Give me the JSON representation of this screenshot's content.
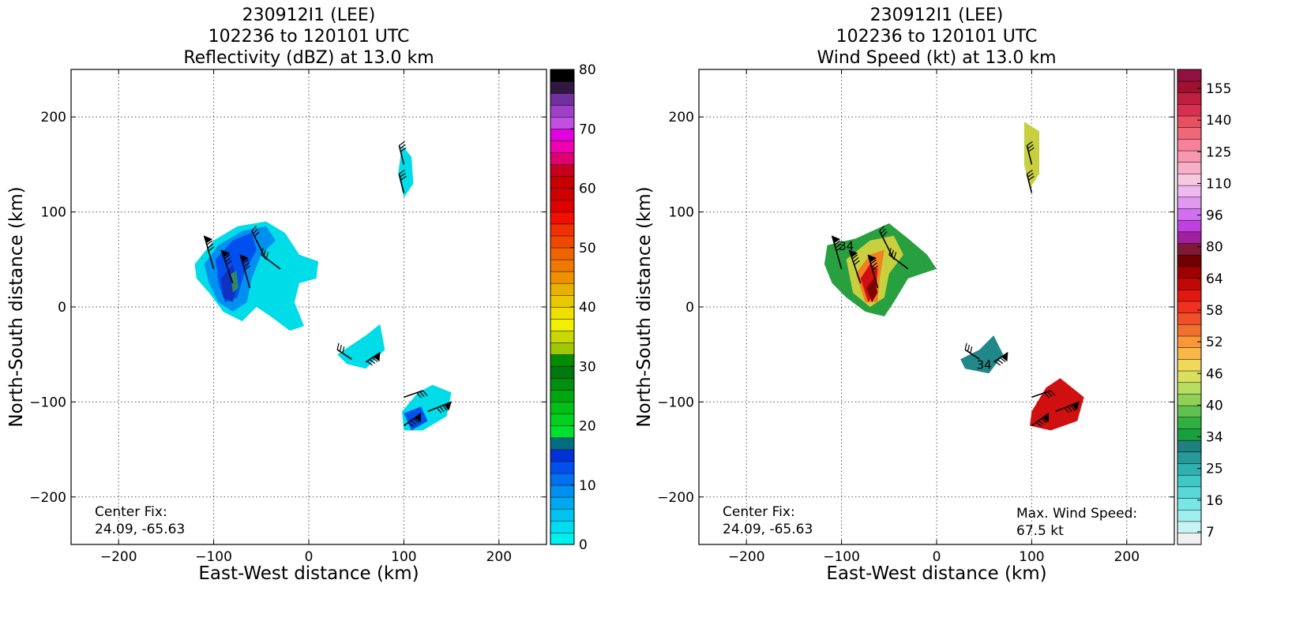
{
  "chart_data": [
    {
      "type": "heatmap",
      "title_lines": [
        "230912I1 (LEE)",
        "102236 to 120101 UTC",
        "Reflectivity (dBZ) at 13.0 km"
      ],
      "xlabel": "East-West distance (km)",
      "ylabel": "North-South distance (km)",
      "xlim": [
        -250,
        250
      ],
      "ylim": [
        -250,
        250
      ],
      "xticks": [
        -200,
        -100,
        0,
        100,
        200
      ],
      "yticks": [
        -200,
        -100,
        0,
        100,
        200
      ],
      "grid": true,
      "annotation_left": [
        "Center Fix:",
        "24.09, -65.63"
      ],
      "colorbar": {
        "min": 0,
        "max": 80,
        "tick_labels": [
          "0",
          "10",
          "20",
          "30",
          "40",
          "50",
          "60",
          "70",
          "80"
        ],
        "colors": [
          "#00f0f0",
          "#00dcf0",
          "#00c4f0",
          "#00a8f0",
          "#0090f0",
          "#0070f0",
          "#0050f0",
          "#0030d8",
          "#006e80",
          "#00e030",
          "#00d020",
          "#00c018",
          "#00a810",
          "#009010",
          "#007810",
          "#008c00",
          "#a0c800",
          "#c8d800",
          "#f0f000",
          "#f0e000",
          "#e8c800",
          "#e8b000",
          "#f09000",
          "#f07800",
          "#f06400",
          "#f04800",
          "#f03000",
          "#f01000",
          "#e00000",
          "#d00000",
          "#c80000",
          "#c80020",
          "#e00070",
          "#f000b0",
          "#e000e0",
          "#c050e0",
          "#a040c8",
          "#7030a0",
          "#301840",
          "#000000"
        ]
      },
      "layer_colors": {
        "outer": "#00dce8",
        "mid": "#0090f0",
        "core": "#0050f0",
        "deep": "#1030c0",
        "green": "#2a8a60"
      }
    },
    {
      "type": "heatmap",
      "title_lines": [
        "230912I1 (LEE)",
        "102236 to 120101 UTC",
        "Wind Speed (kt) at 13.0 km"
      ],
      "xlabel": "East-West distance (km)",
      "ylabel": "North-South distance (km)",
      "xlim": [
        -250,
        250
      ],
      "ylim": [
        -250,
        250
      ],
      "xticks": [
        -200,
        -100,
        0,
        100,
        200
      ],
      "yticks": [
        -200,
        -100,
        0,
        100,
        200
      ],
      "grid": true,
      "annotation_left": [
        "Center Fix:",
        "24.09, -65.63"
      ],
      "annotation_right": [
        "Max. Wind Speed:",
        "67.5 kt"
      ],
      "inline_labels": [
        "34",
        "34"
      ],
      "colorbar": {
        "tick_labels": [
          "7",
          "16",
          "25",
          "34",
          "40",
          "46",
          "52",
          "58",
          "64",
          "80",
          "96",
          "110",
          "125",
          "140",
          "155"
        ],
        "colors": [
          "#f0f0f0",
          "#c8f4f4",
          "#a0eeee",
          "#78e6e6",
          "#58d8d8",
          "#40c8c8",
          "#30b0b0",
          "#289898",
          "#208080",
          "#18a040",
          "#30b040",
          "#60c050",
          "#90d058",
          "#b8dc60",
          "#d8e060",
          "#f0d858",
          "#f8b848",
          "#f89838",
          "#f07030",
          "#f05028",
          "#f03020",
          "#e01810",
          "#c00808",
          "#a00000",
          "#700000",
          "#801838",
          "#a020a0",
          "#c040e0",
          "#d070f0",
          "#e098f0",
          "#f0b8f0",
          "#f8c8e0",
          "#f8b0c8",
          "#f898b0",
          "#f88098",
          "#f06878",
          "#e85060",
          "#d83050",
          "#c02040",
          "#a01030",
          "#901040"
        ]
      },
      "layer_colors": {
        "green": "#28a040",
        "yellow": "#c8d040",
        "orange": "#f08020",
        "red": "#d01010",
        "darkred": "#800000",
        "teal": "#208888"
      }
    }
  ]
}
